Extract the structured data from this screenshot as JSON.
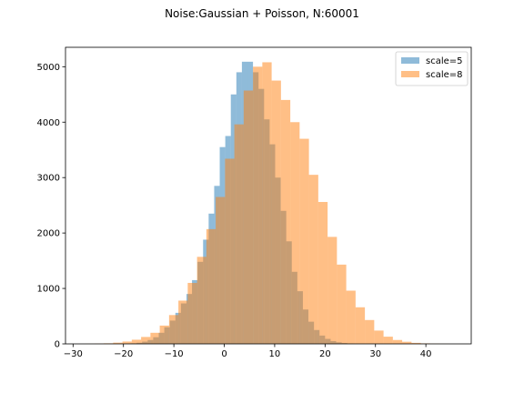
{
  "chart_data": {
    "type": "bar",
    "subtype": "overlapping-histogram",
    "title": "Noise:Gaussian + Poisson, N:60001",
    "xlabel": "",
    "ylabel": "",
    "xlim": [
      -31.5,
      49
    ],
    "ylim": [
      0,
      5350
    ],
    "xticks": [
      -30,
      -20,
      -10,
      0,
      10,
      20,
      30,
      40
    ],
    "yticks": [
      0,
      1000,
      2000,
      3000,
      4000,
      5000
    ],
    "grid": false,
    "legend_position": "top-right",
    "series": [
      {
        "name": "scale=5",
        "color": "#1f77b4",
        "opacity": 0.5,
        "bin_edges": [
          -24,
          -22.9,
          -21.8,
          -20.7,
          -19.6,
          -18.5,
          -17.4,
          -16.3,
          -15.2,
          -14.1,
          -13,
          -11.9,
          -10.8,
          -9.7,
          -8.6,
          -7.5,
          -6.4,
          -5.3,
          -4.2,
          -3.1,
          -2,
          -0.9,
          0.2,
          1.3,
          2.4,
          3.5,
          4.6,
          5.7,
          6.8,
          7.9,
          9,
          10.1,
          11.2,
          12.3,
          13.4,
          14.5,
          15.6,
          16.7,
          17.8,
          18.9,
          20,
          21.1,
          22.2,
          23.3,
          24.4,
          25.5,
          26.6,
          27.7,
          28.8,
          29.9,
          31
        ],
        "counts": [
          1,
          1,
          2,
          3,
          6,
          10,
          20,
          40,
          70,
          120,
          200,
          300,
          420,
          560,
          730,
          900,
          1150,
          1480,
          1880,
          2350,
          2850,
          3550,
          3750,
          4500,
          4900,
          5090,
          5090,
          4900,
          4600,
          4050,
          3600,
          3000,
          2400,
          1850,
          1300,
          950,
          620,
          400,
          250,
          150,
          90,
          50,
          28,
          15,
          8,
          4,
          2,
          1,
          1,
          0
        ]
      },
      {
        "name": "scale=8",
        "color": "#ff7f0e",
        "opacity": 0.5,
        "bin_edges": [
          -27.6,
          -25.75,
          -23.9,
          -22.05,
          -20.2,
          -18.35,
          -16.5,
          -14.65,
          -12.8,
          -10.95,
          -9.1,
          -7.25,
          -5.4,
          -3.55,
          -1.7,
          0.15,
          2,
          3.85,
          5.7,
          7.55,
          9.4,
          11.25,
          13.1,
          14.95,
          16.8,
          18.65,
          20.5,
          22.35,
          24.2,
          26.05,
          27.9,
          29.75,
          31.6,
          33.45,
          35.3,
          37.15,
          39,
          40.85,
          42.7,
          44.55
        ],
        "counts": [
          2,
          5,
          10,
          22,
          42,
          75,
          125,
          200,
          330,
          520,
          780,
          1100,
          1570,
          2070,
          2650,
          3340,
          3960,
          4570,
          5000,
          5080,
          4750,
          4400,
          4000,
          3700,
          3050,
          2560,
          1930,
          1430,
          960,
          660,
          430,
          240,
          130,
          70,
          38,
          18,
          9,
          4,
          2
        ]
      }
    ]
  }
}
